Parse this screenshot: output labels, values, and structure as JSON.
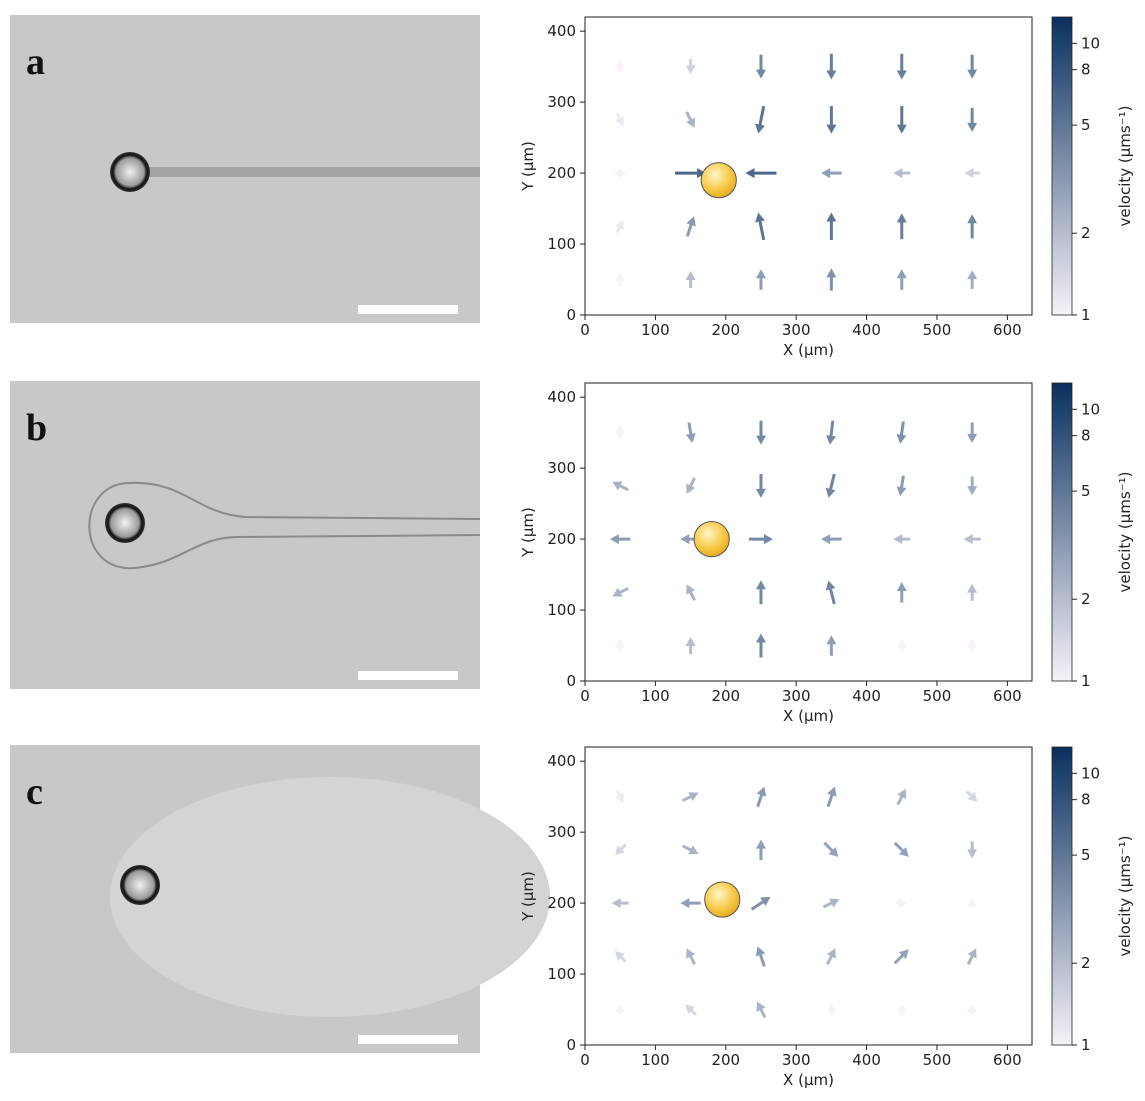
{
  "chart_data": [
    {
      "type": "quiver",
      "panel": "a",
      "xlabel": "X (µm)",
      "ylabel": "Y (µm)",
      "xlim": [
        0,
        635
      ],
      "ylim": [
        0,
        420
      ],
      "xticks": [
        0,
        100,
        200,
        300,
        400,
        500,
        600
      ],
      "yticks": [
        0,
        100,
        200,
        300,
        400
      ],
      "particle": {
        "x": 190,
        "y": 190,
        "r": 25
      },
      "x": [
        50,
        150,
        250,
        350,
        450,
        550,
        50,
        150,
        250,
        350,
        450,
        550,
        50,
        150,
        250,
        350,
        450,
        550,
        50,
        150,
        250,
        350,
        450,
        550,
        50,
        150,
        250,
        350,
        450,
        550
      ],
      "y": [
        350,
        350,
        350,
        350,
        350,
        350,
        275,
        275,
        275,
        275,
        275,
        275,
        200,
        200,
        200,
        200,
        200,
        200,
        125,
        125,
        125,
        125,
        125,
        125,
        50,
        50,
        50,
        50,
        50,
        50
      ],
      "u": [
        0,
        0,
        0,
        0,
        0,
        0,
        0.5,
        1,
        -1,
        0,
        0,
        0,
        1,
        6,
        -6,
        -3,
        -2,
        -1.5,
        0.5,
        1,
        -1,
        0,
        0,
        0,
        0,
        0,
        0,
        0,
        0,
        0
      ],
      "v": [
        -1,
        -1.5,
        -4,
        -4.5,
        -4.5,
        -4,
        -1,
        -2,
        -5,
        -5,
        -5,
        -4,
        0,
        0,
        0,
        0,
        0,
        0,
        1,
        3,
        5,
        5,
        4.5,
        4,
        1,
        2,
        3,
        3.5,
        3,
        2.5
      ],
      "colorbar": {
        "label": "velocity (μms⁻¹)",
        "scale": "log",
        "lim": [
          1,
          12.5
        ],
        "ticks": [
          1,
          2,
          5,
          8,
          10
        ],
        "colors": [
          "#f6f2f8",
          "#08305e"
        ]
      }
    },
    {
      "type": "quiver",
      "panel": "b",
      "xlabel": "X (µm)",
      "ylabel": "Y (µm)",
      "xlim": [
        0,
        635
      ],
      "ylim": [
        0,
        420
      ],
      "xticks": [
        0,
        100,
        200,
        300,
        400,
        500,
        600
      ],
      "yticks": [
        0,
        100,
        200,
        300,
        400
      ],
      "particle": {
        "x": 180,
        "y": 200,
        "r": 25
      },
      "x": [
        50,
        150,
        250,
        350,
        450,
        550,
        50,
        150,
        250,
        350,
        450,
        550,
        50,
        150,
        250,
        350,
        450,
        550,
        50,
        150,
        250,
        350,
        450,
        550,
        50,
        150,
        250,
        350,
        450,
        550
      ],
      "y": [
        350,
        350,
        350,
        350,
        350,
        350,
        275,
        275,
        275,
        275,
        275,
        275,
        200,
        200,
        200,
        200,
        200,
        200,
        125,
        125,
        125,
        125,
        125,
        125,
        50,
        50,
        50,
        50,
        50,
        50
      ],
      "u": [
        0,
        0.5,
        0,
        -0.5,
        -0.5,
        0,
        -2,
        -1,
        0,
        -1,
        -0.5,
        0,
        -3,
        -3,
        4,
        -3,
        -2,
        -2,
        -2,
        -1,
        0,
        -1,
        0,
        0,
        0,
        0,
        0,
        0,
        0,
        0
      ],
      "v": [
        -1,
        -3,
        -4,
        -4,
        -3.5,
        -3,
        1,
        -2,
        -4,
        -4,
        -3,
        -2.5,
        0,
        0,
        0,
        0,
        0,
        0,
        -1,
        2,
        4,
        4,
        3,
        2,
        1,
        2,
        4,
        3,
        1,
        1
      ],
      "colorbar": {
        "label": "velocity (μms⁻¹)",
        "scale": "log",
        "lim": [
          1,
          12.5
        ],
        "ticks": [
          1,
          2,
          5,
          8,
          10
        ],
        "colors": [
          "#f6f2f8",
          "#08305e"
        ]
      }
    },
    {
      "type": "quiver",
      "panel": "c",
      "xlabel": "X (µm)",
      "ylabel": "Y (µm)",
      "xlim": [
        0,
        635
      ],
      "ylim": [
        0,
        420
      ],
      "xticks": [
        0,
        100,
        200,
        300,
        400,
        500,
        600
      ],
      "yticks": [
        0,
        100,
        200,
        300,
        400
      ],
      "particle": {
        "x": 195,
        "y": 205,
        "r": 25
      },
      "x": [
        50,
        150,
        250,
        350,
        450,
        550,
        50,
        150,
        250,
        350,
        450,
        550,
        50,
        150,
        250,
        350,
        450,
        550,
        50,
        150,
        250,
        350,
        450,
        550,
        50,
        150,
        250,
        350,
        450,
        550
      ],
      "y": [
        350,
        350,
        350,
        350,
        350,
        350,
        275,
        275,
        275,
        275,
        275,
        275,
        200,
        200,
        200,
        200,
        200,
        200,
        125,
        125,
        125,
        125,
        125,
        125,
        50,
        50,
        50,
        50,
        50,
        50
      ],
      "u": [
        0.5,
        2,
        1,
        1,
        1,
        1,
        -1,
        2,
        0,
        2,
        2,
        0,
        -2,
        -3,
        3,
        2,
        0.5,
        0,
        -1,
        -1,
        -1,
        1,
        2,
        1,
        0,
        -1,
        -1,
        0,
        0,
        0
      ],
      "v": [
        -1,
        1,
        3,
        3,
        2,
        -1,
        -1,
        -1,
        3,
        -2,
        -2,
        -2,
        0,
        0,
        2,
        1,
        0,
        0.5,
        1,
        2,
        3,
        2,
        2,
        2,
        0.5,
        1,
        2,
        1,
        0.5,
        0.5
      ],
      "colorbar": {
        "label": "velocity (μms⁻¹)",
        "scale": "log",
        "lim": [
          1,
          12.5
        ],
        "ticks": [
          1,
          2,
          5,
          8,
          10
        ],
        "colors": [
          "#f6f2f8",
          "#08305e"
        ]
      }
    }
  ]
}
